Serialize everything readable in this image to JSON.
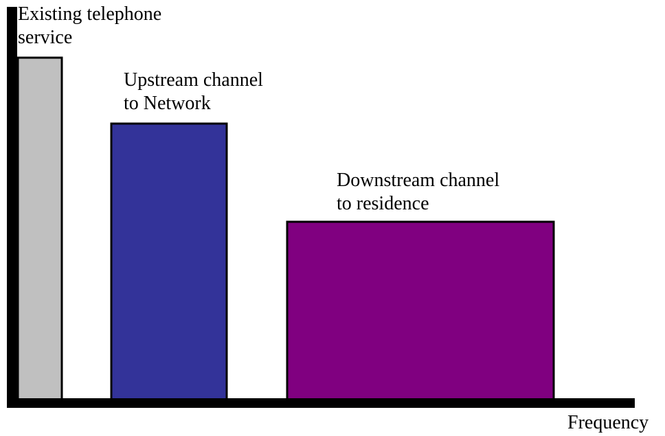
{
  "labels": {
    "telephone_line1": "Existing telephone",
    "telephone_line2": "service",
    "upstream_line1": "Upstream channel",
    "upstream_line2": "to Network",
    "downstream_line1": "Downstream channel",
    "downstream_line2": "to residence",
    "x_axis": "Frequency"
  },
  "colors": {
    "telephone_band": "#c0c0c0",
    "upstream_band": "#333399",
    "downstream_band": "#800080",
    "axis": "#000000",
    "band_border": "#000000"
  }
}
